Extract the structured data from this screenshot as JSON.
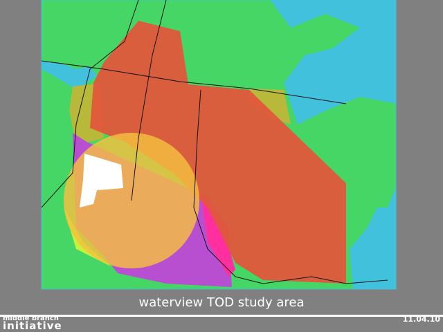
{
  "caption": "waterview TOD study area",
  "footer": {
    "org_line1": "middle branch",
    "org_line2": "initiative",
    "date": "11.04.10"
  }
}
